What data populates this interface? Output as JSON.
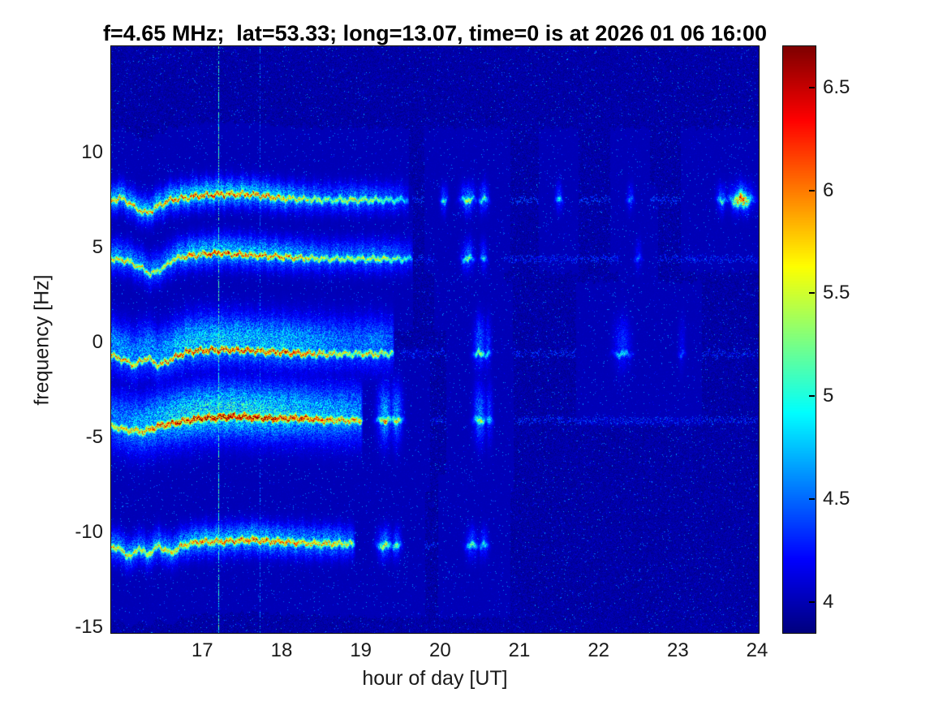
{
  "chart_data": {
    "type": "heatmap",
    "title": "f=4.65 MHz;  lat=53.33; long=13.07, time=0 is at 2026 01 06 16:00",
    "xlabel": "hour of day [UT]",
    "ylabel": "frequency [Hz]",
    "x_axis": {
      "range": [
        15.85,
        24.02
      ],
      "ticks": [
        17,
        18,
        19,
        20,
        21,
        22,
        23,
        24
      ]
    },
    "y_axis": {
      "range": [
        -15.3,
        15.6
      ],
      "ticks": [
        -15,
        -10,
        -5,
        0,
        5,
        10
      ]
    },
    "color_axis": {
      "range": [
        3.85,
        6.7
      ],
      "ticks": [
        4,
        4.5,
        5,
        5.5,
        6,
        6.5
      ],
      "colormap": "jet"
    },
    "background_value": 3.95,
    "grid": false,
    "bands": [
      {
        "name": "line +7.6 Hz",
        "path": [
          [
            15.85,
            7.5
          ],
          [
            16.0,
            7.6
          ],
          [
            16.15,
            7.1
          ],
          [
            16.3,
            6.8
          ],
          [
            16.45,
            7.2
          ],
          [
            16.6,
            7.5
          ],
          [
            16.9,
            7.7
          ],
          [
            17.2,
            7.8
          ],
          [
            17.6,
            7.8
          ],
          [
            18.0,
            7.6
          ],
          [
            18.5,
            7.5
          ],
          [
            19.0,
            7.5
          ],
          [
            19.6,
            7.5
          ],
          [
            24.1,
            7.5
          ]
        ],
        "amp": [
          [
            15.85,
            5.9
          ],
          [
            16.1,
            5.8
          ],
          [
            16.4,
            5.9
          ],
          [
            16.8,
            6.1
          ],
          [
            17.1,
            6.2
          ],
          [
            17.5,
            6.1
          ],
          [
            17.9,
            6.0
          ],
          [
            18.2,
            5.7
          ],
          [
            18.6,
            5.3
          ],
          [
            18.9,
            5.6
          ],
          [
            19.2,
            5.3
          ],
          [
            19.5,
            5.0
          ],
          [
            19.6,
            4.6
          ],
          [
            19.65,
            0
          ]
        ],
        "cw": 0.13,
        "hw": 0.5,
        "hf": 0.42,
        "ho": 0.1,
        "wig": 0.08,
        "blips": [
          {
            "t": 20.05,
            "amp": 5.1,
            "tw": 0.03
          },
          {
            "t": 20.35,
            "amp": 5.6,
            "tw": 0.06
          },
          {
            "t": 20.55,
            "amp": 5.3,
            "tw": 0.04
          },
          {
            "t": 21.5,
            "amp": 5.0,
            "tw": 0.03
          },
          {
            "t": 22.4,
            "amp": 4.7,
            "tw": 0.03
          },
          {
            "t": 23.55,
            "amp": 5.2,
            "tw": 0.04
          },
          {
            "t": 23.8,
            "amp": 6.1,
            "tw": 0.09,
            "fw": 2.2
          }
        ],
        "tail": {
          "t0": 19.65,
          "t1": 24.02,
          "amp": 4.35
        }
      },
      {
        "name": "line +4.5 Hz",
        "path": [
          [
            15.85,
            4.4
          ],
          [
            16.05,
            4.3
          ],
          [
            16.2,
            4.0
          ],
          [
            16.35,
            3.6
          ],
          [
            16.5,
            3.9
          ],
          [
            16.65,
            4.4
          ],
          [
            16.9,
            4.6
          ],
          [
            17.2,
            4.7
          ],
          [
            17.6,
            4.6
          ],
          [
            18.0,
            4.5
          ],
          [
            18.5,
            4.4
          ],
          [
            19.0,
            4.4
          ],
          [
            19.7,
            4.4
          ],
          [
            24.1,
            4.4
          ]
        ],
        "amp": [
          [
            15.85,
            5.8
          ],
          [
            16.2,
            5.6
          ],
          [
            16.5,
            5.5
          ],
          [
            16.8,
            6.0
          ],
          [
            17.1,
            6.2
          ],
          [
            17.4,
            6.1
          ],
          [
            17.8,
            6.0
          ],
          [
            18.1,
            5.9
          ],
          [
            18.5,
            5.5
          ],
          [
            18.9,
            5.4
          ],
          [
            19.2,
            5.6
          ],
          [
            19.5,
            5.2
          ],
          [
            19.65,
            4.8
          ],
          [
            19.7,
            0
          ]
        ],
        "cw": 0.13,
        "hw": 0.55,
        "hf": 0.4,
        "ho": 0.15,
        "wig": 0.07,
        "blips": [
          {
            "t": 20.35,
            "amp": 5.4,
            "tw": 0.05
          },
          {
            "t": 20.55,
            "amp": 5.0,
            "tw": 0.03
          },
          {
            "t": 22.5,
            "amp": 4.6,
            "tw": 0.03
          }
        ],
        "tail": {
          "t0": 19.7,
          "t1": 24.02,
          "amp": 4.3
        }
      },
      {
        "name": "line -0.6 Hz",
        "path": [
          [
            15.85,
            -0.7
          ],
          [
            16.0,
            -0.9
          ],
          [
            16.15,
            -1.2
          ],
          [
            16.3,
            -0.8
          ],
          [
            16.45,
            -1.2
          ],
          [
            16.6,
            -0.9
          ],
          [
            16.8,
            -0.5
          ],
          [
            17.1,
            -0.4
          ],
          [
            17.5,
            -0.4
          ],
          [
            17.9,
            -0.5
          ],
          [
            18.3,
            -0.6
          ],
          [
            18.8,
            -0.6
          ],
          [
            19.3,
            -0.6
          ],
          [
            24.1,
            -0.6
          ]
        ],
        "amp": [
          [
            15.85,
            5.9
          ],
          [
            16.2,
            5.8
          ],
          [
            16.5,
            5.9
          ],
          [
            16.8,
            6.3
          ],
          [
            17.1,
            6.4
          ],
          [
            17.4,
            6.3
          ],
          [
            17.7,
            6.2
          ],
          [
            18.0,
            6.3
          ],
          [
            18.3,
            6.1
          ],
          [
            18.6,
            5.8
          ],
          [
            18.9,
            5.5
          ],
          [
            19.15,
            5.8
          ],
          [
            19.4,
            5.4
          ],
          [
            19.5,
            0
          ]
        ],
        "cw": 0.14,
        "hw": 0.9,
        "hf": 0.38,
        "ho": 0.55,
        "wig": 0.08,
        "blips": [
          {
            "t": 20.5,
            "amp": 5.5,
            "tw": 0.05
          },
          {
            "t": 20.6,
            "amp": 5.0,
            "tw": 0.03
          },
          {
            "t": 22.3,
            "amp": 5.0,
            "tw": 0.07
          },
          {
            "t": 23.05,
            "amp": 4.5,
            "tw": 0.03
          }
        ],
        "tail": {
          "t0": 19.5,
          "t1": 24.02,
          "amp": 4.3
        }
      },
      {
        "name": "line -4.1 Hz",
        "path": [
          [
            15.85,
            -4.4
          ],
          [
            16.05,
            -4.6
          ],
          [
            16.25,
            -4.7
          ],
          [
            16.45,
            -4.4
          ],
          [
            16.7,
            -4.2
          ],
          [
            17.0,
            -4.0
          ],
          [
            17.4,
            -3.9
          ],
          [
            17.8,
            -4.0
          ],
          [
            18.2,
            -4.0
          ],
          [
            18.6,
            -4.1
          ],
          [
            19.0,
            -4.1
          ],
          [
            19.5,
            -4.1
          ],
          [
            24.1,
            -4.1
          ]
        ],
        "amp": [
          [
            15.85,
            5.6
          ],
          [
            16.1,
            5.8
          ],
          [
            16.4,
            6.1
          ],
          [
            16.7,
            6.4
          ],
          [
            17.0,
            6.6
          ],
          [
            17.3,
            6.65
          ],
          [
            17.6,
            6.6
          ],
          [
            17.9,
            6.5
          ],
          [
            18.2,
            6.3
          ],
          [
            18.5,
            6.1
          ],
          [
            18.8,
            6.0
          ],
          [
            19.0,
            5.8
          ],
          [
            19.1,
            0
          ]
        ],
        "cw": 0.16,
        "hw": 1.0,
        "hf": 0.4,
        "ho": 0.35,
        "wig": 0.06,
        "blips": [
          {
            "t": 19.3,
            "amp": 6.0,
            "tw": 0.06
          },
          {
            "t": 19.45,
            "amp": 5.8,
            "tw": 0.05
          },
          {
            "t": 20.5,
            "amp": 5.6,
            "tw": 0.05
          },
          {
            "t": 20.62,
            "amp": 5.0,
            "tw": 0.03
          }
        ],
        "tail": {
          "t0": 19.1,
          "t1": 24.02,
          "amp": 4.3
        }
      },
      {
        "name": "line -10.6 Hz",
        "path": [
          [
            15.85,
            -10.7
          ],
          [
            16.0,
            -11.0
          ],
          [
            16.1,
            -11.3
          ],
          [
            16.2,
            -10.8
          ],
          [
            16.3,
            -11.2
          ],
          [
            16.45,
            -10.7
          ],
          [
            16.6,
            -11.1
          ],
          [
            16.75,
            -10.7
          ],
          [
            16.95,
            -10.5
          ],
          [
            17.2,
            -10.5
          ],
          [
            17.6,
            -10.4
          ],
          [
            18.0,
            -10.5
          ],
          [
            18.4,
            -10.6
          ],
          [
            18.8,
            -10.6
          ],
          [
            19.2,
            -10.7
          ],
          [
            24.1,
            -10.7
          ]
        ],
        "amp": [
          [
            15.85,
            5.7
          ],
          [
            16.2,
            5.6
          ],
          [
            16.5,
            5.7
          ],
          [
            16.8,
            5.9
          ],
          [
            17.1,
            6.0
          ],
          [
            17.4,
            6.0
          ],
          [
            17.7,
            6.1
          ],
          [
            18.0,
            6.0
          ],
          [
            18.3,
            5.8
          ],
          [
            18.6,
            5.9
          ],
          [
            18.9,
            5.4
          ],
          [
            19.05,
            0
          ]
        ],
        "cw": 0.15,
        "hw": 0.55,
        "hf": 0.4,
        "ho": 0.1,
        "wig": 0.07,
        "blips": [
          {
            "t": 19.3,
            "amp": 5.7,
            "tw": 0.06
          },
          {
            "t": 19.45,
            "amp": 5.3,
            "tw": 0.04
          },
          {
            "t": 20.4,
            "amp": 5.2,
            "tw": 0.05
          },
          {
            "t": 20.55,
            "amp": 5.0,
            "tw": 0.04
          }
        ],
        "tail": {
          "t0": 19.05,
          "t1": 20.8,
          "amp": 4.3
        }
      }
    ],
    "vertical_lines": [
      {
        "t": 17.2,
        "value": 5.0,
        "density": 0.75
      },
      {
        "t": 17.72,
        "value": 4.45,
        "density": 0.45
      }
    ]
  }
}
